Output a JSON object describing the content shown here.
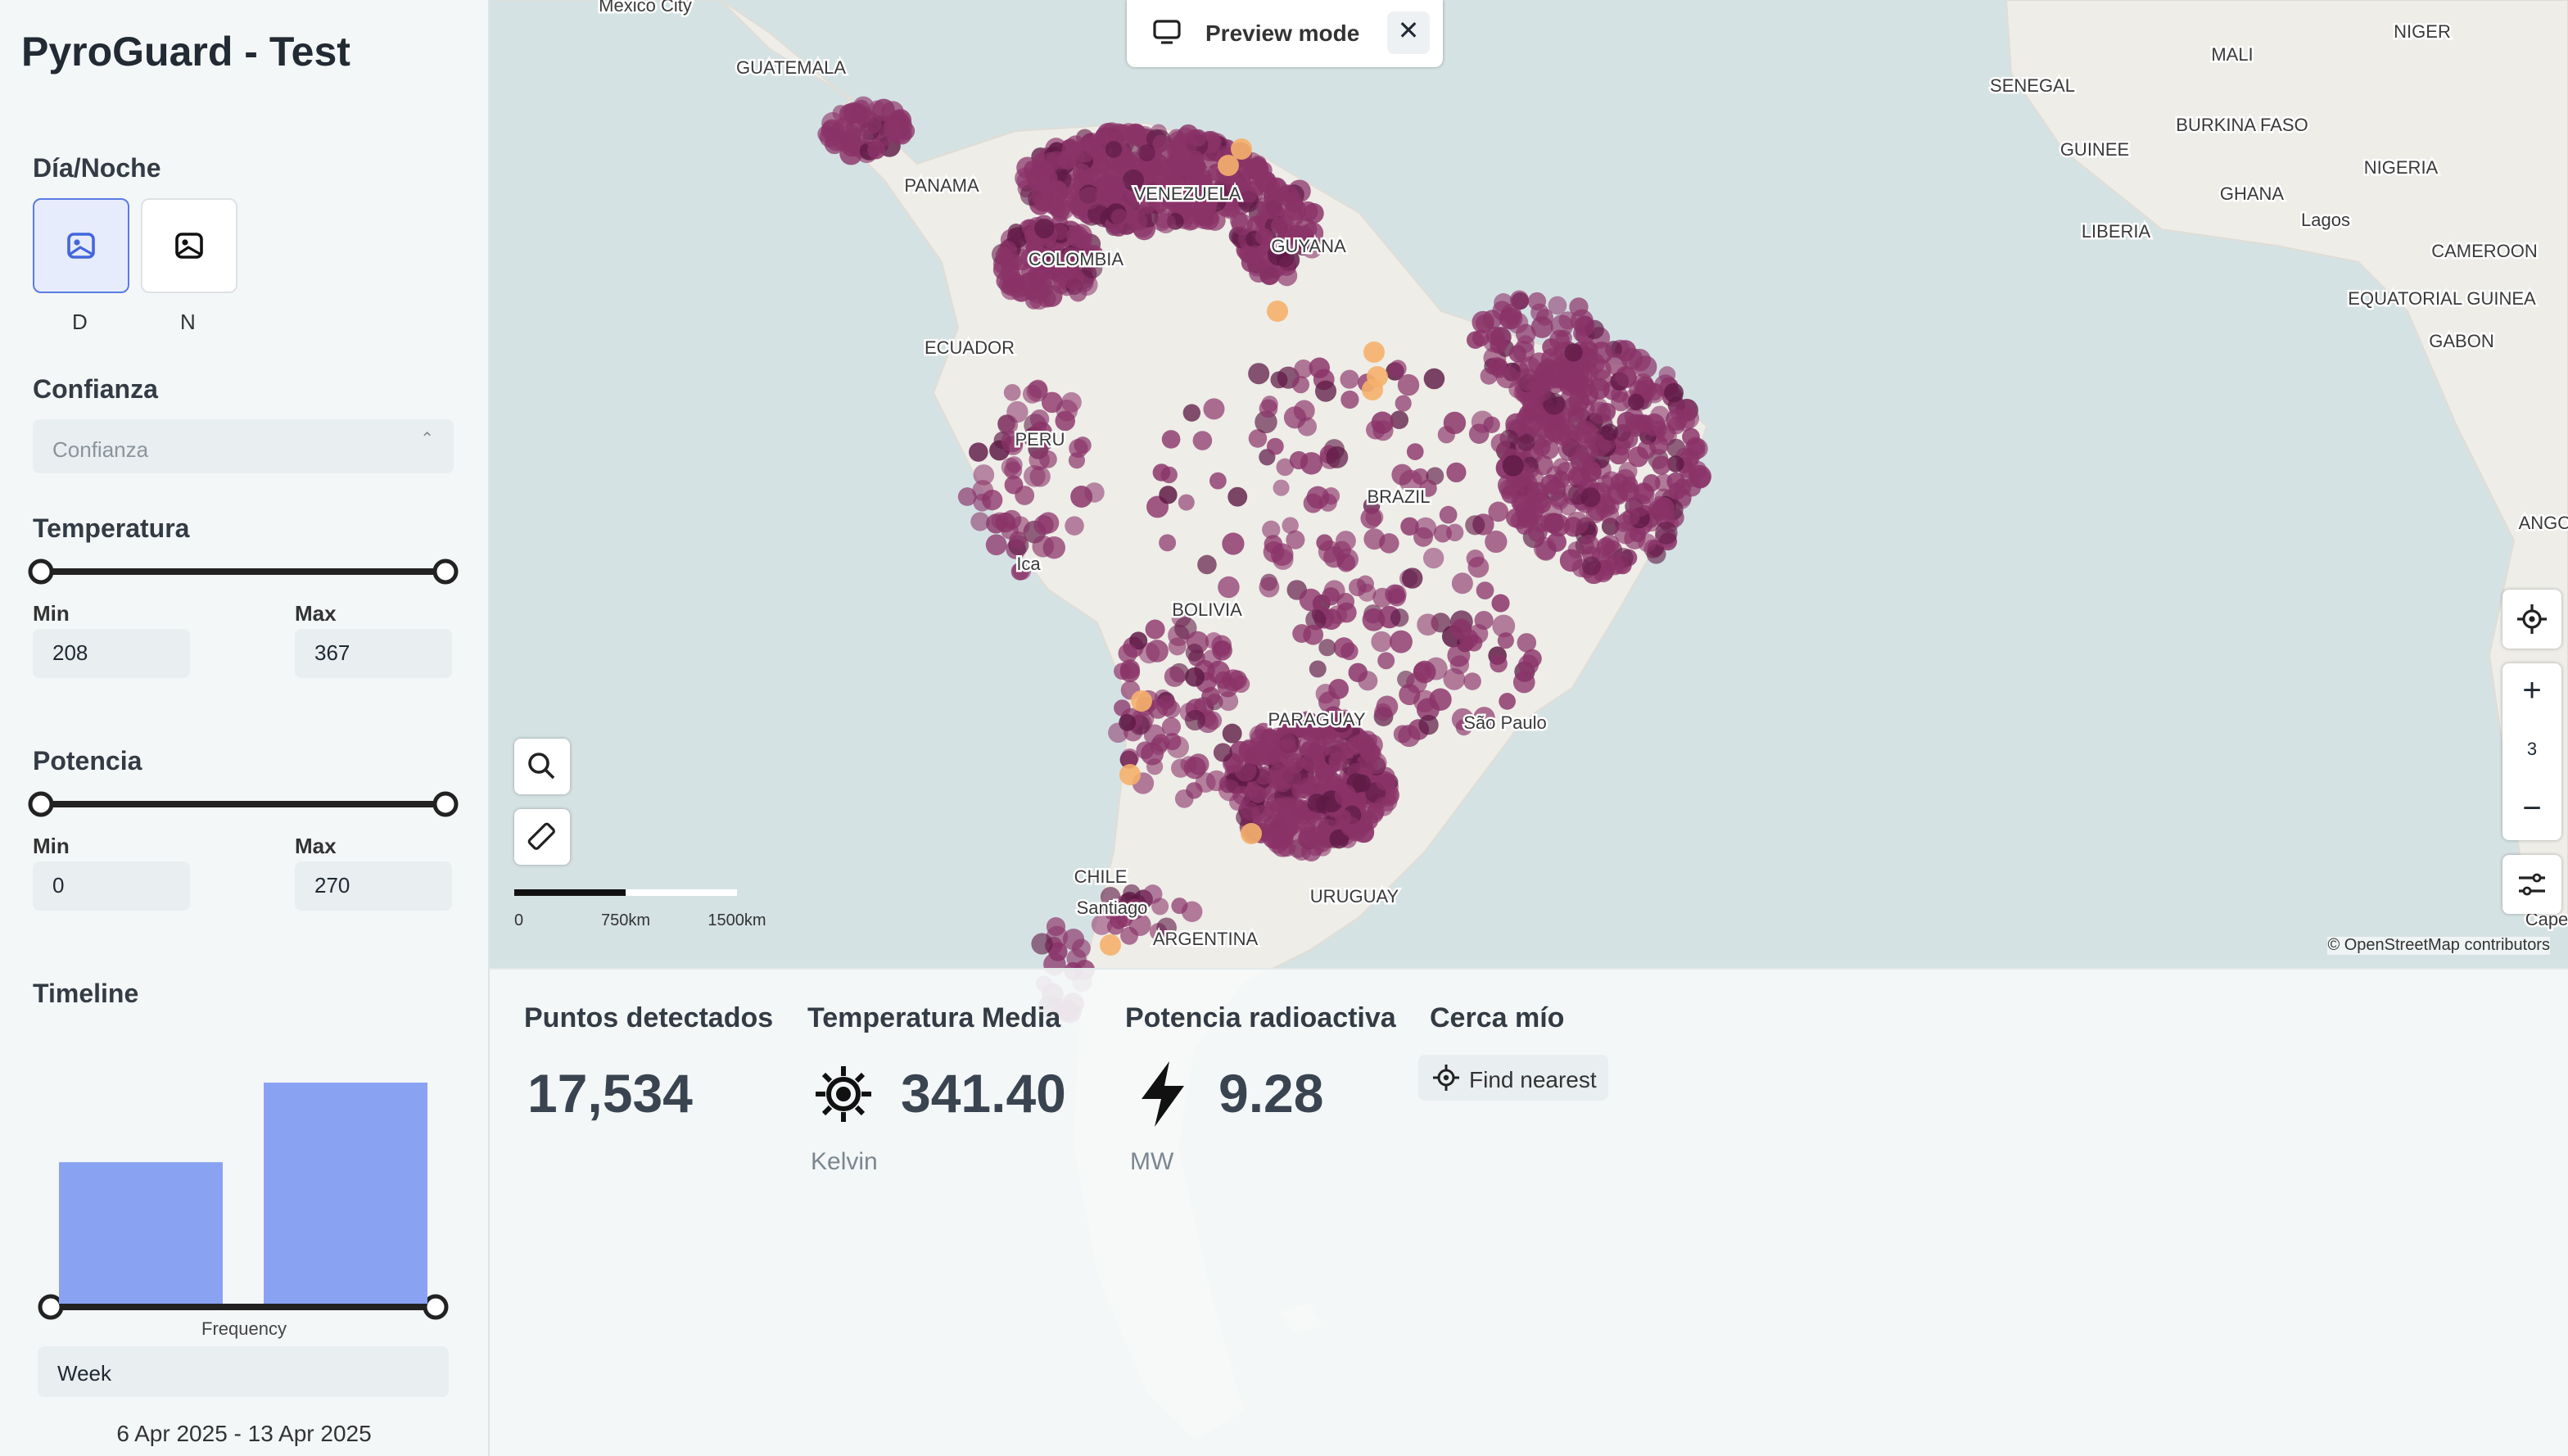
{
  "sidebar": {
    "title": "PyroGuard - Test",
    "day_night": {
      "label": "Día/Noche",
      "options": [
        "D",
        "N"
      ]
    },
    "confidence": {
      "label": "Confianza",
      "placeholder": "Confianza"
    },
    "temperature": {
      "label": "Temperatura",
      "min_label": "Min",
      "max_label": "Max",
      "min": "208",
      "max": "367"
    },
    "power": {
      "label": "Potencia",
      "min_label": "Min",
      "max_label": "Max",
      "min": "0",
      "max": "270"
    },
    "timeline": {
      "label": "Timeline",
      "bars": [
        64,
        100
      ],
      "axis_label": "Frequency",
      "interval": "Week",
      "range": "6 Apr 2025 - 13 Apr 2025"
    }
  },
  "map": {
    "preview": "Preview mode",
    "labels": [
      "Mexico City",
      "GUATEMALA",
      "PANAMA",
      "VENEZUELA",
      "COLOMBIA",
      "GUYANA",
      "ECUADOR",
      "PERU",
      "BRAZIL",
      "Ica",
      "BOLIVIA",
      "PARAGUAY",
      "São Paulo",
      "CHILE",
      "Santiago",
      "URUGUAY",
      "ARGENTINA",
      "NIGER",
      "MALI",
      "SENEGAL",
      "BURKINA FASO",
      "GUINEE",
      "GHANA",
      "NIGERIA",
      "LIBERIA",
      "Lagos",
      "CAMEROON",
      "EQUATORIAL GUINEA",
      "GABON",
      "ANGO",
      "Cape"
    ],
    "scale": [
      "0",
      "750km",
      "1500km"
    ],
    "zoom": "3",
    "attribution": "© OpenStreetMap contributors"
  },
  "stats": {
    "points": {
      "label": "Puntos detectados",
      "value": "17,534"
    },
    "temperature": {
      "label": "Temperatura Media",
      "value": "341.40",
      "unit": "Kelvin"
    },
    "power": {
      "label": "Potencia radioactiva",
      "value": "9.28",
      "unit": "MW"
    },
    "near": {
      "label": "Cerca mío",
      "button": "Find nearest"
    }
  }
}
